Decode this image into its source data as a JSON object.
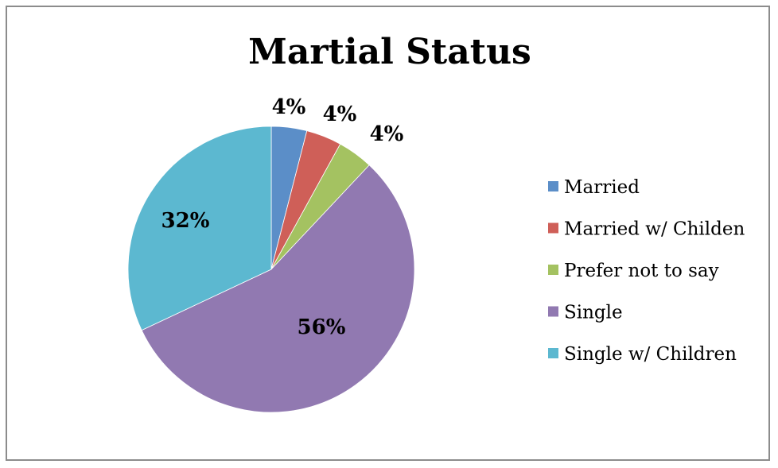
{
  "chart_data": {
    "type": "pie",
    "title": "Martial Status",
    "categories": [
      "Married",
      "Married w/ Childen",
      "Prefer not to say",
      "Single",
      "Single w/ Children"
    ],
    "values": [
      4,
      4,
      4,
      56,
      32
    ],
    "data_labels": [
      "4%",
      "4%",
      "4%",
      "56%",
      "32%"
    ],
    "colors": [
      "#5b8ec8",
      "#cf5f58",
      "#a4c261",
      "#9179b1",
      "#5cb8d0"
    ],
    "legend_position": "right"
  }
}
